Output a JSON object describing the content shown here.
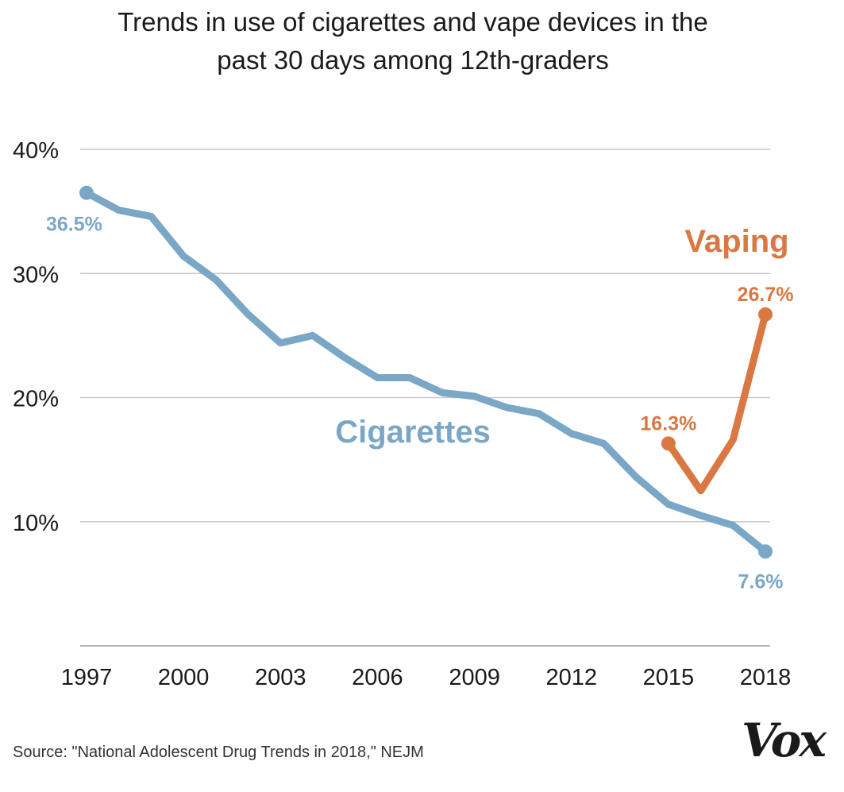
{
  "title_line1": "Trends in use of cigarettes and vape devices in the",
  "title_line2": "past 30 days among 12th-graders",
  "source": "Source: \"National Adolescent Drug Trends in 2018,\" NEJM",
  "logo": "Vox",
  "colors": {
    "cigarettes": "#7BA7C7",
    "vaping": "#D97843",
    "grid": "#c8c8c8",
    "text": "#1a1a1a"
  },
  "chart_data": {
    "type": "line",
    "title": "Trends in use of cigarettes and vape devices in the past 30 days among 12th-graders",
    "xlabel": "",
    "ylabel": "",
    "x_ticks": [
      "1997",
      "2000",
      "2003",
      "2006",
      "2009",
      "2012",
      "2015",
      "2018"
    ],
    "y_ticks": [
      "10%",
      "20%",
      "30%",
      "40%"
    ],
    "xlim": [
      1997,
      2018
    ],
    "ylim": [
      0,
      40
    ],
    "grid": true,
    "series": [
      {
        "name": "Cigarettes",
        "x": [
          1997,
          1998,
          1999,
          2000,
          2001,
          2002,
          2003,
          2004,
          2005,
          2006,
          2007,
          2008,
          2009,
          2010,
          2011,
          2012,
          2013,
          2014,
          2015,
          2016,
          2017,
          2018
        ],
        "values": [
          36.5,
          35.1,
          34.6,
          31.4,
          29.5,
          26.7,
          24.4,
          25.0,
          23.2,
          21.6,
          21.6,
          20.4,
          20.1,
          19.2,
          18.7,
          17.1,
          16.3,
          13.6,
          11.4,
          10.5,
          9.7,
          7.6
        ],
        "labels": [
          {
            "x": 1997,
            "text": "36.5%"
          },
          {
            "x": 2018,
            "text": "7.6%"
          }
        ]
      },
      {
        "name": "Vaping",
        "x": [
          2015,
          2016,
          2017,
          2018
        ],
        "values": [
          16.3,
          12.5,
          16.6,
          26.7
        ],
        "labels": [
          {
            "x": 2015,
            "text": "16.3%"
          },
          {
            "x": 2018,
            "text": "26.7%"
          }
        ]
      }
    ]
  }
}
